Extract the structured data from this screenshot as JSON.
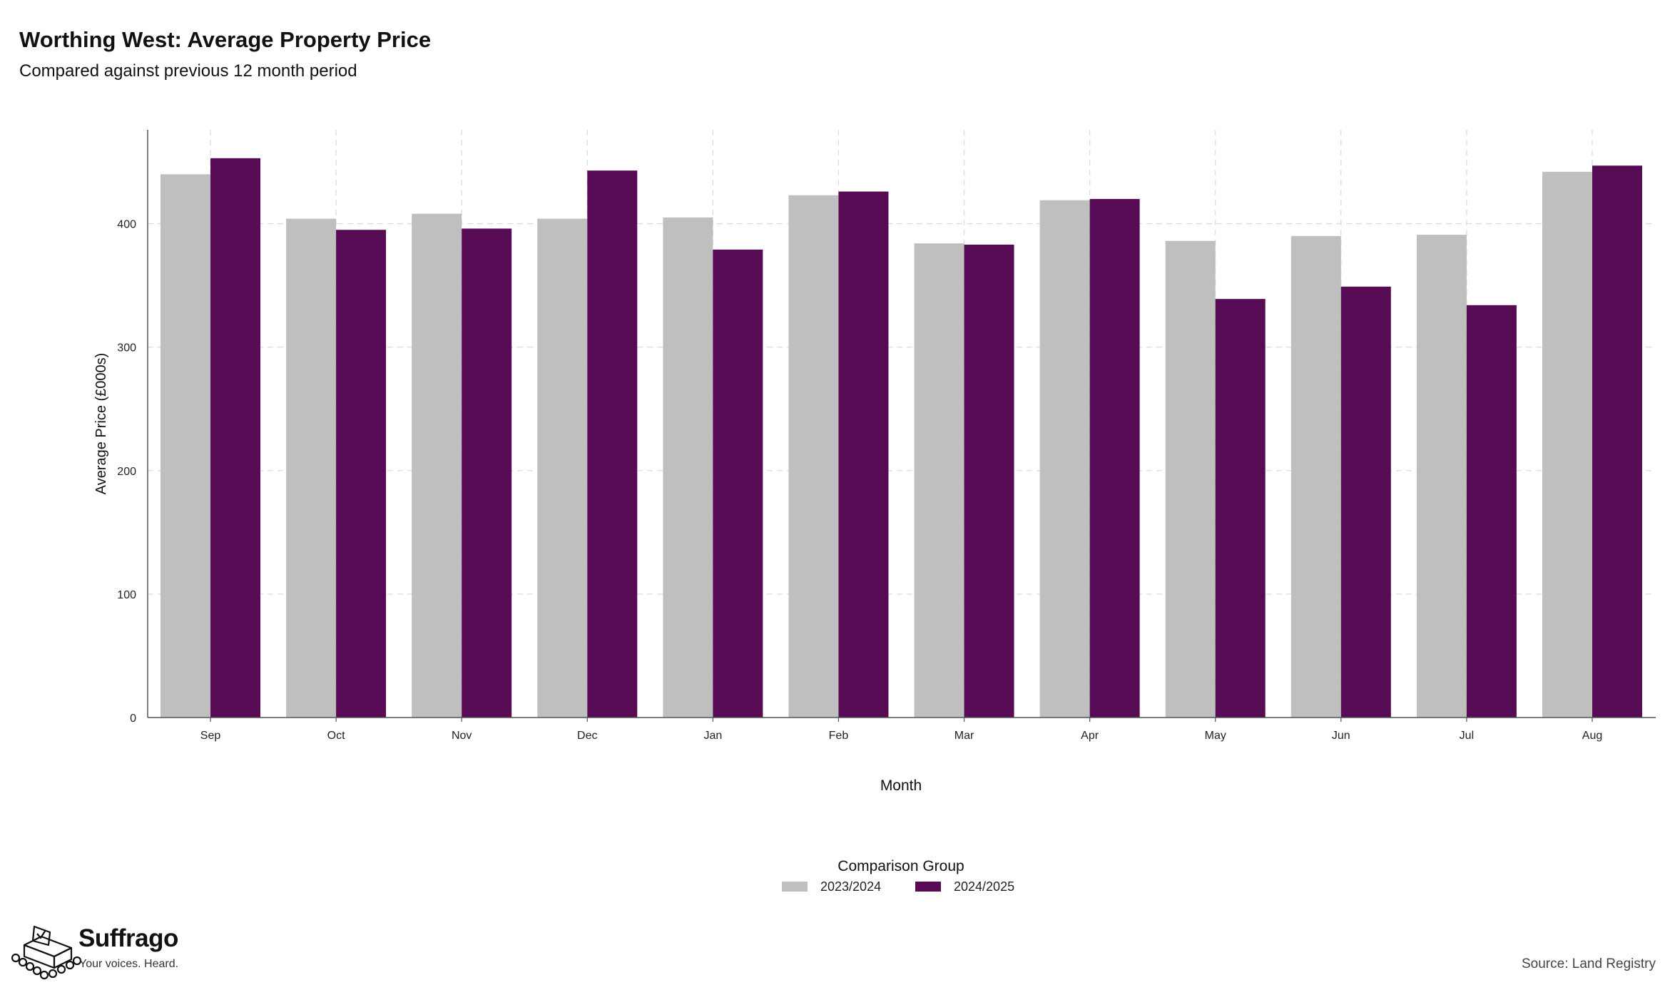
{
  "header": {
    "title": "Worthing West: Average Property Price",
    "subtitle": "Compared against previous 12 month period"
  },
  "chart_data": {
    "type": "bar",
    "title": "Worthing West: Average Property Price",
    "subtitle": "Compared against previous 12 month period",
    "xlabel": "Month",
    "ylabel": "Average Price (£000s)",
    "ylim": [
      0,
      476
    ],
    "yticks": [
      0,
      100,
      200,
      300,
      400
    ],
    "grid": true,
    "categories": [
      "Sep",
      "Oct",
      "Nov",
      "Dec",
      "Jan",
      "Feb",
      "Mar",
      "Apr",
      "May",
      "Jun",
      "Jul",
      "Aug"
    ],
    "series": [
      {
        "name": "2023/2024",
        "color": "#bfbfbf",
        "values": [
          440,
          404,
          408,
          404,
          405,
          423,
          384,
          419,
          386,
          390,
          391,
          442
        ]
      },
      {
        "name": "2024/2025",
        "color": "#560b54",
        "values": [
          453,
          395,
          396,
          443,
          379,
          426,
          383,
          420,
          339,
          349,
          334,
          447
        ]
      }
    ],
    "legend": {
      "title": "Comparison Group",
      "position": "bottom"
    }
  },
  "branding": {
    "name": "Suffrago",
    "tagline": "Your voices. Heard.",
    "logo_icon": "ballot-box-icon"
  },
  "footer": {
    "source": "Source: Land Registry"
  }
}
